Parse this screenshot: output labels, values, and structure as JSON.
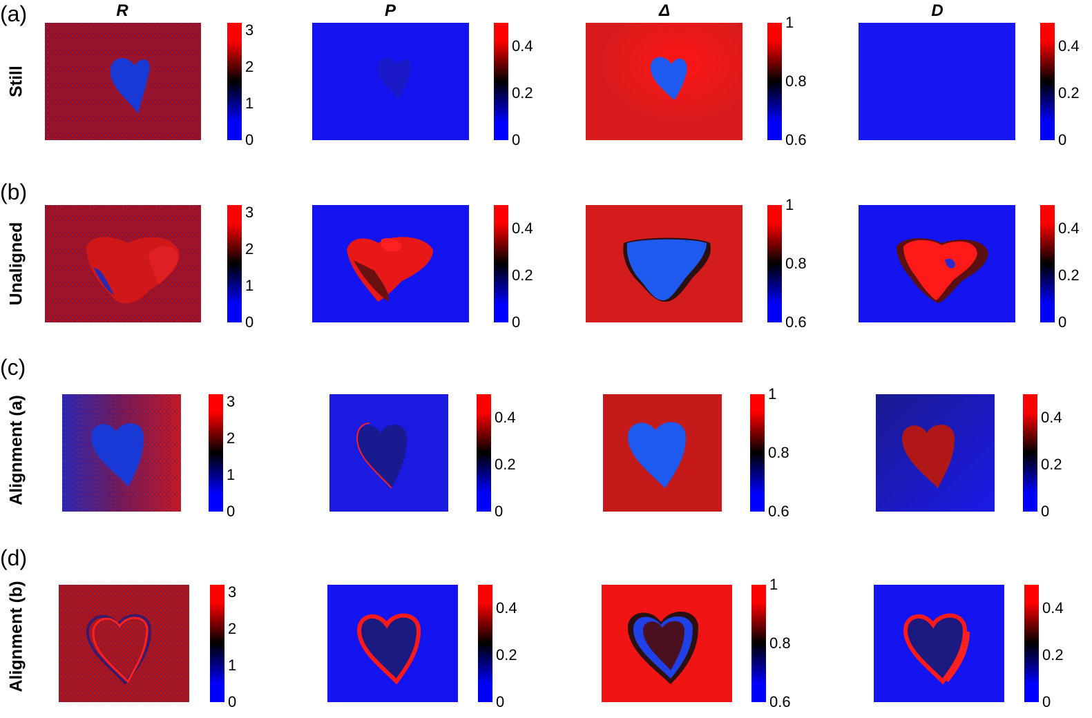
{
  "columns": [
    "R",
    "P",
    "Δ",
    "D"
  ],
  "rows": [
    {
      "letter": "(a)",
      "label": "Still"
    },
    {
      "letter": "(b)",
      "label": "Unaligned"
    },
    {
      "letter": "(c)",
      "label": "Alignment (a)"
    },
    {
      "letter": "(d)",
      "label": "Alignment (b)"
    }
  ],
  "colorbars": {
    "R": {
      "range": [
        0,
        3.2
      ],
      "ticks": [
        "0",
        "1",
        "2",
        "3"
      ],
      "tick_values": [
        0,
        1,
        2,
        3
      ]
    },
    "P": {
      "range": [
        0,
        0.5
      ],
      "ticks": [
        "0",
        "0.2",
        "0.4"
      ],
      "tick_values": [
        0,
        0.2,
        0.4
      ]
    },
    "Δ": {
      "range": [
        0.6,
        1.0
      ],
      "ticks": [
        "0.6",
        "0.8",
        "1"
      ],
      "tick_values": [
        0.6,
        0.8,
        1.0
      ]
    },
    "D": {
      "range": [
        0,
        0.5
      ],
      "ticks": [
        "0",
        "0.2",
        "0.4"
      ],
      "tick_values": [
        0,
        0.2,
        0.4
      ]
    }
  },
  "colormap": {
    "low": "#0000ff",
    "mid": "#000000",
    "high": "#ff0000"
  }
}
